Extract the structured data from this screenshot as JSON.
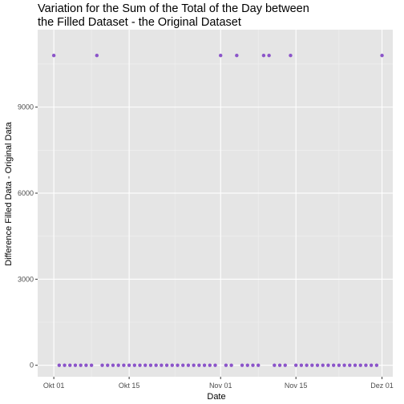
{
  "chart_data": {
    "type": "scatter",
    "title_lines": [
      "Variation for the Sum of the Total of the Day between",
      "the Filled Dataset - the Original Dataset"
    ],
    "xlabel": "Date",
    "ylabel": "Difference Filled Data - Original Data",
    "x_ticks": [
      {
        "date": "2017-10-01",
        "label": "Okt 01"
      },
      {
        "date": "2017-10-15",
        "label": "Okt 15"
      },
      {
        "date": "2017-11-01",
        "label": "Nov 01"
      },
      {
        "date": "2017-11-15",
        "label": "Nov 15"
      },
      {
        "date": "2017-12-01",
        "label": "Dez 01"
      }
    ],
    "y_ticks": [
      0,
      3000,
      6000,
      9000
    ],
    "xlim": [
      "2017-09-28",
      "2017-12-03"
    ],
    "ylim": [
      -400,
      11700
    ],
    "grid": true,
    "point_color": "#8b54c9",
    "panel_color": "#e5e5e5",
    "series": [
      {
        "x": [
          "2017-10-01",
          "2017-10-02",
          "2017-10-03",
          "2017-10-04",
          "2017-10-05",
          "2017-10-06",
          "2017-10-07",
          "2017-10-08",
          "2017-10-09",
          "2017-10-10",
          "2017-10-11",
          "2017-10-12",
          "2017-10-13",
          "2017-10-14",
          "2017-10-15",
          "2017-10-16",
          "2017-10-17",
          "2017-10-18",
          "2017-10-19",
          "2017-10-20",
          "2017-10-21",
          "2017-10-22",
          "2017-10-23",
          "2017-10-24",
          "2017-10-25",
          "2017-10-26",
          "2017-10-27",
          "2017-10-28",
          "2017-10-29",
          "2017-10-30",
          "2017-10-31",
          "2017-11-01",
          "2017-11-02",
          "2017-11-03",
          "2017-11-04",
          "2017-11-05",
          "2017-11-06",
          "2017-11-07",
          "2017-11-08",
          "2017-11-09",
          "2017-11-10",
          "2017-11-11",
          "2017-11-12",
          "2017-11-13",
          "2017-11-14",
          "2017-11-15",
          "2017-11-16",
          "2017-11-17",
          "2017-11-18",
          "2017-11-19",
          "2017-11-20",
          "2017-11-21",
          "2017-11-22",
          "2017-11-23",
          "2017-11-24",
          "2017-11-25",
          "2017-11-26",
          "2017-11-27",
          "2017-11-28",
          "2017-11-29",
          "2017-11-30",
          "2017-12-01"
        ],
        "y": [
          10800,
          0,
          0,
          0,
          0,
          0,
          0,
          0,
          10800,
          0,
          0,
          0,
          0,
          0,
          0,
          0,
          0,
          0,
          0,
          0,
          0,
          0,
          0,
          0,
          0,
          0,
          0,
          0,
          0,
          0,
          0,
          10800,
          0,
          0,
          10800,
          0,
          0,
          0,
          0,
          10800,
          10800,
          0,
          0,
          0,
          10800,
          0,
          0,
          0,
          0,
          0,
          0,
          0,
          0,
          0,
          0,
          0,
          0,
          0,
          0,
          0,
          0,
          10800
        ]
      }
    ]
  }
}
